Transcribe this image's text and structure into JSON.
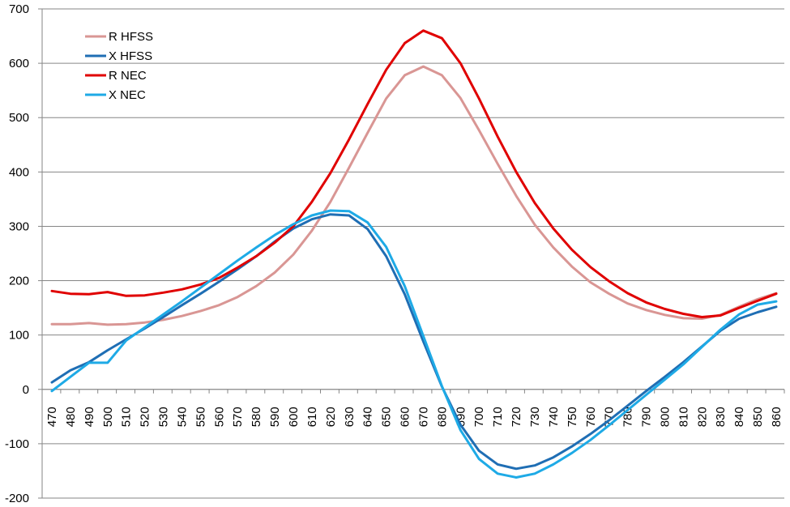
{
  "chart_data": {
    "type": "line",
    "title": "",
    "xlabel": "",
    "ylabel": "",
    "ylim": [
      -200,
      700
    ],
    "yticks": [
      -200,
      -100,
      0,
      100,
      200,
      300,
      400,
      500,
      600,
      700
    ],
    "grid": true,
    "legend_position": "top-left",
    "x": [
      470,
      480,
      490,
      500,
      510,
      520,
      530,
      540,
      550,
      560,
      570,
      580,
      590,
      600,
      610,
      620,
      630,
      640,
      650,
      660,
      670,
      680,
      690,
      700,
      710,
      720,
      730,
      740,
      750,
      760,
      770,
      780,
      790,
      800,
      810,
      820,
      830,
      840,
      850,
      860
    ],
    "series": [
      {
        "name": "R HFSS",
        "color": "#d99694",
        "values": [
          120,
          120,
          122,
          119,
          120,
          123,
          128,
          135,
          144,
          155,
          170,
          190,
          215,
          248,
          292,
          345,
          408,
          472,
          535,
          578,
          594,
          578,
          536,
          477,
          415,
          356,
          303,
          261,
          226,
          197,
          176,
          158,
          146,
          137,
          131,
          130,
          137,
          152,
          166,
          177
        ]
      },
      {
        "name": "X HFSS",
        "color": "#1f6eb4",
        "values": [
          13,
          35,
          50,
          72,
          92,
          112,
          133,
          155,
          176,
          198,
          221,
          245,
          272,
          296,
          313,
          322,
          320,
          295,
          245,
          175,
          88,
          5,
          -65,
          -113,
          -138,
          -146,
          -140,
          -125,
          -105,
          -82,
          -57,
          -30,
          -3,
          23,
          50,
          79,
          108,
          130,
          142,
          152
        ]
      },
      {
        "name": "R NEC",
        "color": "#e00000",
        "values": [
          181,
          176,
          175,
          179,
          172,
          173,
          178,
          184,
          193,
          205,
          224,
          245,
          270,
          300,
          345,
          398,
          460,
          525,
          588,
          637,
          660,
          646,
          600,
          535,
          465,
          400,
          343,
          296,
          257,
          225,
          199,
          177,
          160,
          148,
          139,
          133,
          136,
          150,
          163,
          176
        ]
      },
      {
        "name": "X NEC",
        "color": "#1eaae6",
        "values": [
          -3,
          23,
          49,
          49,
          90,
          114,
          138,
          162,
          187,
          212,
          237,
          261,
          284,
          304,
          320,
          329,
          328,
          307,
          262,
          190,
          98,
          6,
          -75,
          -128,
          -155,
          -162,
          -155,
          -138,
          -117,
          -93,
          -66,
          -38,
          -10,
          18,
          46,
          78,
          110,
          138,
          156,
          162
        ]
      }
    ]
  }
}
